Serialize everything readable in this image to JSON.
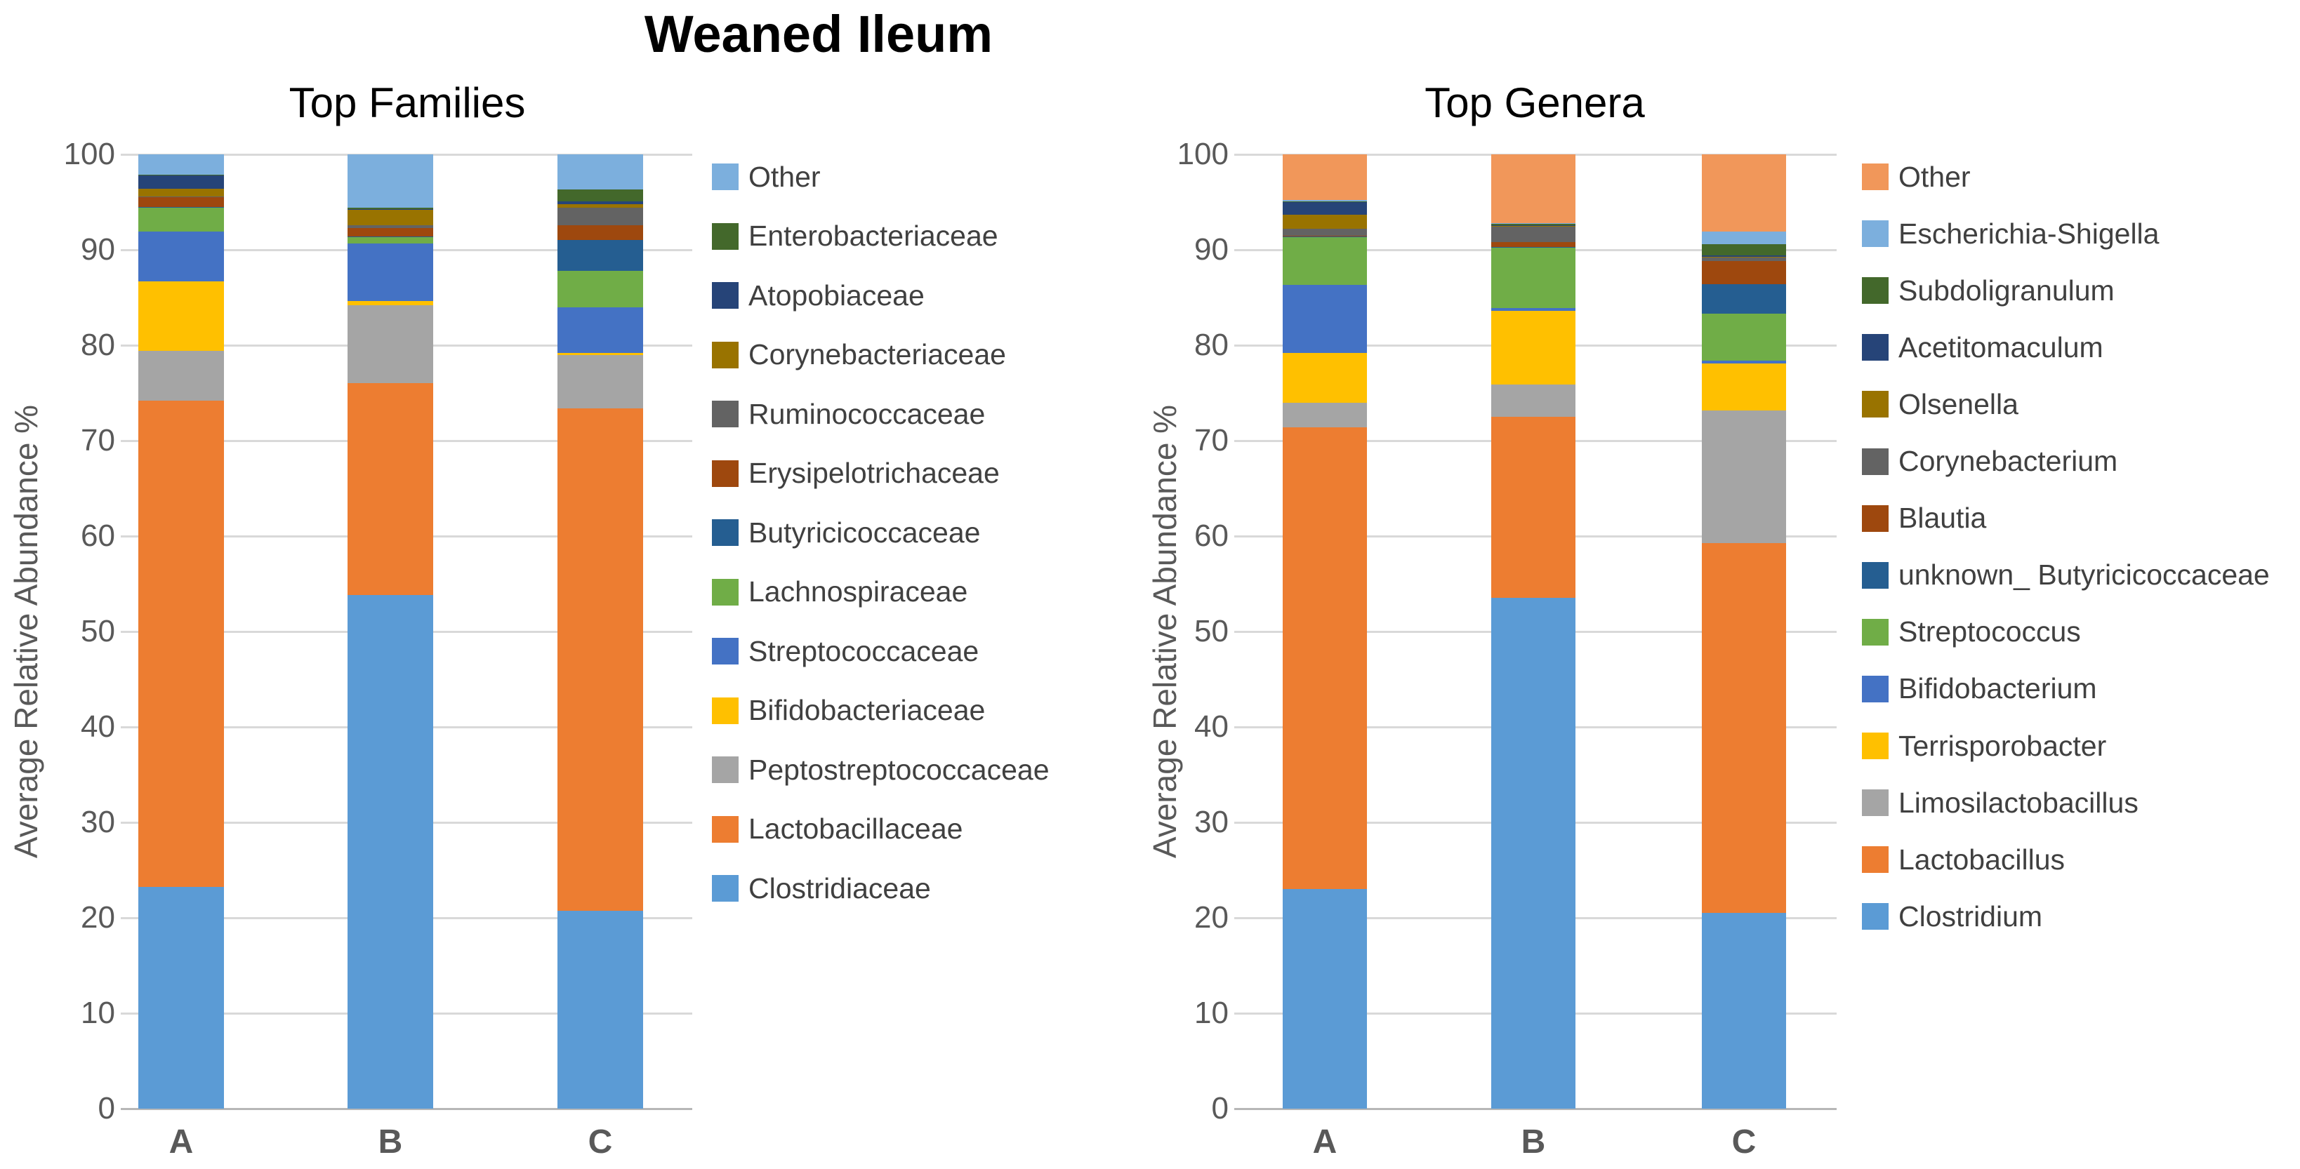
{
  "page": {
    "title": "Weaned Ileum"
  },
  "chart_data": [
    {
      "type": "bar",
      "stacked": true,
      "title": "Top Families",
      "ylabel": "Average Relative Abundance %",
      "ylim": [
        0,
        100
      ],
      "grid": true,
      "legend_position": "right",
      "yticks": [
        "0",
        "10",
        "20",
        "30",
        "40",
        "50",
        "60",
        "70",
        "80",
        "90",
        "100"
      ],
      "categories": [
        "A",
        "B",
        "C"
      ],
      "series": [
        {
          "name": "Clostridiaceae",
          "color": "#5B9BD5",
          "values": [
            23.2,
            53.8,
            20.7
          ]
        },
        {
          "name": "Lactobacillaceae",
          "color": "#ED7D31",
          "values": [
            51.0,
            22.2,
            52.7
          ]
        },
        {
          "name": "Peptostreptococcaceae",
          "color": "#A5A5A5",
          "values": [
            5.2,
            8.2,
            5.6
          ]
        },
        {
          "name": "Bifidobacteriaceae",
          "color": "#FFC000",
          "values": [
            7.3,
            0.4,
            0.2
          ]
        },
        {
          "name": "Streptococcaceae",
          "color": "#4472C4",
          "values": [
            5.2,
            6.1,
            4.8
          ]
        },
        {
          "name": "Lachnospiraceae",
          "color": "#70AD47",
          "values": [
            2.5,
            0.6,
            3.8
          ]
        },
        {
          "name": "Butyricicoccaceae",
          "color": "#255E91",
          "values": [
            0.1,
            0.1,
            3.2
          ]
        },
        {
          "name": "Erysipelotrichaceae",
          "color": "#9E480E",
          "values": [
            1.0,
            0.9,
            1.6
          ]
        },
        {
          "name": "Ruminococcaceae",
          "color": "#636363",
          "values": [
            0.1,
            0.3,
            1.8
          ]
        },
        {
          "name": "Corynebacteriaceae",
          "color": "#997300",
          "values": [
            0.8,
            1.6,
            0.4
          ]
        },
        {
          "name": "Atopobiaceae",
          "color": "#264478",
          "values": [
            1.4,
            0.1,
            0.3
          ]
        },
        {
          "name": "Enterobacteriaceae",
          "color": "#43682B",
          "values": [
            0.1,
            0.1,
            1.2
          ]
        },
        {
          "name": "Other",
          "color": "#7CAFDD",
          "values": [
            2.1,
            5.6,
            3.7
          ]
        }
      ]
    },
    {
      "type": "bar",
      "stacked": true,
      "title": "Top Genera",
      "ylabel": "Average Relative Abundance %",
      "ylim": [
        0,
        100
      ],
      "grid": true,
      "legend_position": "right",
      "yticks": [
        "0",
        "10",
        "20",
        "30",
        "40",
        "50",
        "60",
        "70",
        "80",
        "90",
        "100"
      ],
      "categories": [
        "A",
        "B",
        "C"
      ],
      "series": [
        {
          "name": "Clostridium",
          "color": "#5B9BD5",
          "values": [
            23.0,
            53.5,
            20.5
          ]
        },
        {
          "name": "Lactobacillus",
          "color": "#ED7D31",
          "values": [
            48.4,
            19.0,
            38.8
          ]
        },
        {
          "name": "Limosilactobacillus",
          "color": "#A5A5A5",
          "values": [
            2.6,
            3.4,
            13.9
          ]
        },
        {
          "name": "Terrisporobacter",
          "color": "#FFC000",
          "values": [
            5.2,
            7.7,
            4.9
          ]
        },
        {
          "name": "Bifidobacterium",
          "color": "#4472C4",
          "values": [
            7.1,
            0.3,
            0.3
          ]
        },
        {
          "name": "Streptococcus",
          "color": "#70AD47",
          "values": [
            5.0,
            6.3,
            4.9
          ]
        },
        {
          "name": "unknown_ Butyricicoccaceae",
          "color": "#255E91",
          "values": [
            0.1,
            0.1,
            3.1
          ]
        },
        {
          "name": "Blautia",
          "color": "#9E480E",
          "values": [
            0.1,
            0.5,
            2.4
          ]
        },
        {
          "name": "Corynebacterium",
          "color": "#636363",
          "values": [
            0.7,
            1.6,
            0.4
          ]
        },
        {
          "name": "Olsenella",
          "color": "#997300",
          "values": [
            1.5,
            0.1,
            0.1
          ]
        },
        {
          "name": "Acetitomaculum",
          "color": "#264478",
          "values": [
            1.3,
            0.1,
            0.1
          ]
        },
        {
          "name": "Subdoligranulum",
          "color": "#43682B",
          "values": [
            0.1,
            0.1,
            1.2
          ]
        },
        {
          "name": "Escherichia-Shigella",
          "color": "#7CAFDD",
          "values": [
            0.1,
            0.1,
            1.3
          ]
        },
        {
          "name": "Other",
          "color": "#F1975A",
          "values": [
            4.8,
            7.2,
            8.1
          ]
        }
      ]
    }
  ]
}
